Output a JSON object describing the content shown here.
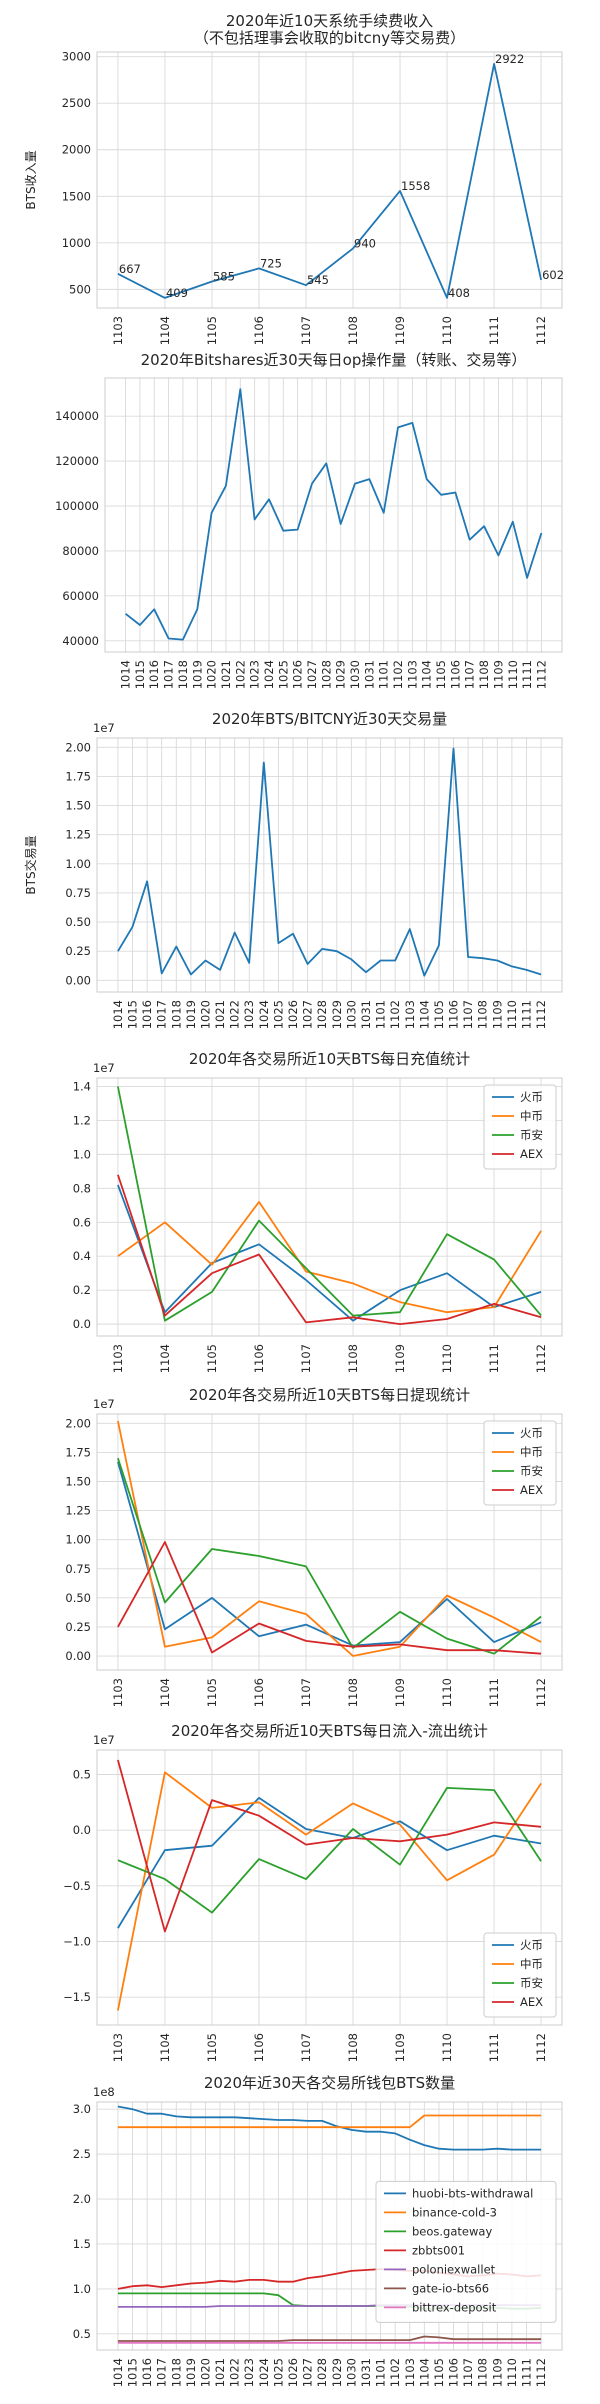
{
  "chart_data": [
    {
      "type": "line",
      "title": "2020年近10天系统手续费收入\n（不包括理事会收取的bitcny等交易费）",
      "ylabel": "BTS收入量",
      "x": [
        "1103",
        "1104",
        "1105",
        "1106",
        "1107",
        "1108",
        "1109",
        "1110",
        "1111",
        "1112"
      ],
      "ylim": [
        300,
        3050
      ],
      "yticks": [
        500,
        1000,
        1500,
        2000,
        2500,
        3000
      ],
      "grid": true,
      "series": [
        {
          "color": "#1f77b4",
          "values": [
            667,
            409,
            585,
            725,
            545,
            940,
            1558,
            408,
            2922,
            602
          ],
          "labels": [
            "667",
            "409",
            "585",
            "725",
            "545",
            "940",
            "1558",
            "408",
            "2922",
            "602"
          ]
        }
      ]
    },
    {
      "type": "line",
      "title": "2020年Bitshares近30天每日op操作量（转账、交易等）",
      "ylabel": "",
      "x": [
        "1014",
        "1015",
        "1016",
        "1017",
        "1018",
        "1019",
        "1020",
        "1021",
        "1022",
        "1023",
        "1024",
        "1025",
        "1026",
        "1027",
        "1028",
        "1029",
        "1030",
        "1031",
        "1101",
        "1102",
        "1103",
        "1104",
        "1105",
        "1106",
        "1107",
        "1108",
        "1109",
        "1110",
        "1111",
        "1112"
      ],
      "ylim": [
        35000,
        157000
      ],
      "yticks": [
        40000,
        60000,
        80000,
        100000,
        120000,
        140000
      ],
      "grid": true,
      "series": [
        {
          "color": "#1f77b4",
          "values": [
            52000,
            47000,
            54000,
            41000,
            40500,
            54000,
            97000,
            109000,
            152000,
            94000,
            103000,
            89000,
            89500,
            110000,
            119000,
            92000,
            110000,
            112000,
            97000,
            135000,
            137000,
            112000,
            105000,
            106000,
            85000,
            91000,
            78000,
            93000,
            68000,
            88000
          ]
        }
      ]
    },
    {
      "type": "line",
      "title": "2020年BTS/BITCNY近30天交易量",
      "ylabel": "BTS交易量",
      "scale_label": "1e7",
      "x": [
        "1014",
        "1015",
        "1016",
        "1017",
        "1018",
        "1019",
        "1020",
        "1021",
        "1022",
        "1023",
        "1024",
        "1025",
        "1026",
        "1027",
        "1028",
        "1029",
        "1030",
        "1031",
        "1101",
        "1102",
        "1103",
        "1104",
        "1105",
        "1106",
        "1107",
        "1108",
        "1109",
        "1110",
        "1111",
        "1112"
      ],
      "ylim": [
        -0.1,
        2.08
      ],
      "yticks": [
        0,
        0.25,
        0.5,
        0.75,
        1.0,
        1.25,
        1.5,
        1.75,
        2.0
      ],
      "ytick_labels": [
        "0.00",
        "0.25",
        "0.50",
        "0.75",
        "1.00",
        "1.25",
        "1.50",
        "1.75",
        "2.00"
      ],
      "grid": true,
      "series": [
        {
          "color": "#1f77b4",
          "values": [
            0.25,
            0.46,
            0.85,
            0.06,
            0.29,
            0.05,
            0.17,
            0.09,
            0.41,
            0.15,
            1.87,
            0.32,
            0.4,
            0.14,
            0.27,
            0.25,
            0.18,
            0.07,
            0.17,
            0.17,
            0.44,
            0.04,
            0.3,
            1.99,
            0.2,
            0.19,
            0.17,
            0.12,
            0.09,
            0.05
          ]
        }
      ]
    },
    {
      "type": "line",
      "title": "2020年各交易所近10天BTS每日充值统计",
      "ylabel": "",
      "scale_label": "1e7",
      "x": [
        "1103",
        "1104",
        "1105",
        "1106",
        "1107",
        "1108",
        "1109",
        "1110",
        "1111",
        "1112"
      ],
      "ylim": [
        -0.07,
        1.45
      ],
      "yticks": [
        0,
        0.2,
        0.4,
        0.6,
        0.8,
        1.0,
        1.2,
        1.4
      ],
      "ytick_labels": [
        "0.0",
        "0.2",
        "0.4",
        "0.6",
        "0.8",
        "1.0",
        "1.2",
        "1.4"
      ],
      "grid": true,
      "legend": "top-right",
      "series": [
        {
          "name": "火币",
          "color": "#1f77b4",
          "values": [
            0.82,
            0.07,
            0.36,
            0.47,
            0.26,
            0.02,
            0.2,
            0.3,
            0.1,
            0.19
          ]
        },
        {
          "name": "中币",
          "color": "#ff7f0e",
          "values": [
            0.4,
            0.6,
            0.35,
            0.72,
            0.31,
            0.24,
            0.13,
            0.07,
            0.1,
            0.55
          ]
        },
        {
          "name": "币安",
          "color": "#2ca02c",
          "values": [
            1.4,
            0.02,
            0.19,
            0.61,
            0.33,
            0.05,
            0.07,
            0.53,
            0.38,
            0.05
          ]
        },
        {
          "name": "AEX",
          "color": "#d62728",
          "values": [
            0.88,
            0.05,
            0.3,
            0.41,
            0.01,
            0.04,
            0.0,
            0.03,
            0.12,
            0.04
          ]
        }
      ]
    },
    {
      "type": "line",
      "title": "2020年各交易所近10天BTS每日提现统计",
      "ylabel": "",
      "scale_label": "1e7",
      "x": [
        "1103",
        "1104",
        "1105",
        "1106",
        "1107",
        "1108",
        "1109",
        "1110",
        "1111",
        "1112"
      ],
      "ylim": [
        -0.12,
        2.08
      ],
      "yticks": [
        0,
        0.25,
        0.5,
        0.75,
        1.0,
        1.25,
        1.5,
        1.75,
        2.0
      ],
      "ytick_labels": [
        "0.00",
        "0.25",
        "0.50",
        "0.75",
        "1.00",
        "1.25",
        "1.50",
        "1.75",
        "2.00"
      ],
      "grid": true,
      "legend": "top-right",
      "series": [
        {
          "name": "火币",
          "color": "#1f77b4",
          "values": [
            1.67,
            0.23,
            0.5,
            0.17,
            0.27,
            0.09,
            0.12,
            0.49,
            0.12,
            0.29
          ]
        },
        {
          "name": "中币",
          "color": "#ff7f0e",
          "values": [
            2.02,
            0.08,
            0.16,
            0.47,
            0.36,
            0.0,
            0.08,
            0.52,
            0.33,
            0.12
          ]
        },
        {
          "name": "币安",
          "color": "#2ca02c",
          "values": [
            1.7,
            0.46,
            0.92,
            0.86,
            0.77,
            0.07,
            0.38,
            0.15,
            0.02,
            0.34
          ]
        },
        {
          "name": "AEX",
          "color": "#d62728",
          "values": [
            0.25,
            0.98,
            0.03,
            0.28,
            0.13,
            0.08,
            0.1,
            0.05,
            0.05,
            0.02
          ]
        }
      ]
    },
    {
      "type": "line",
      "title": "2020年各交易所近10天BTS每日流入-流出统计",
      "ylabel": "",
      "scale_label": "1e7",
      "x": [
        "1103",
        "1104",
        "1105",
        "1106",
        "1107",
        "1108",
        "1109",
        "1110",
        "1111",
        "1112"
      ],
      "ylim": [
        -1.75,
        0.72
      ],
      "yticks": [
        -1.5,
        -1.0,
        -0.5,
        0,
        0.5
      ],
      "ytick_labels": [
        "−1.5",
        "−1.0",
        "−0.5",
        "0.0",
        "0.5"
      ],
      "grid": true,
      "legend": "bottom-right",
      "series": [
        {
          "name": "火币",
          "color": "#1f77b4",
          "values": [
            -0.88,
            -0.18,
            -0.14,
            0.29,
            0.01,
            -0.07,
            0.08,
            -0.18,
            -0.05,
            -0.12
          ]
        },
        {
          "name": "中币",
          "color": "#ff7f0e",
          "values": [
            -1.62,
            0.52,
            0.2,
            0.25,
            -0.04,
            0.24,
            0.05,
            -0.45,
            -0.22,
            0.42
          ]
        },
        {
          "name": "币安",
          "color": "#2ca02c",
          "values": [
            -0.27,
            -0.44,
            -0.74,
            -0.26,
            -0.44,
            0.01,
            -0.31,
            0.38,
            0.36,
            -0.28
          ]
        },
        {
          "name": "AEX",
          "color": "#d62728",
          "values": [
            0.63,
            -0.91,
            0.27,
            0.13,
            -0.13,
            -0.07,
            -0.1,
            -0.04,
            0.07,
            0.03
          ]
        }
      ]
    },
    {
      "type": "line",
      "title": "2020年近30天各交易所钱包BTS数量",
      "ylabel": "",
      "scale_label": "1e8",
      "x": [
        "1014",
        "1015",
        "1016",
        "1017",
        "1018",
        "1019",
        "1020",
        "1021",
        "1022",
        "1023",
        "1024",
        "1025",
        "1026",
        "1027",
        "1028",
        "1029",
        "1030",
        "1031",
        "1101",
        "1102",
        "1103",
        "1104",
        "1105",
        "1106",
        "1107",
        "1108",
        "1109",
        "1110",
        "1111",
        "1112"
      ],
      "ylim": [
        0.32,
        3.08
      ],
      "yticks": [
        0.5,
        1.0,
        1.5,
        2.0,
        2.5,
        3.0
      ],
      "ytick_labels": [
        "0.5",
        "1.0",
        "1.5",
        "2.0",
        "2.5",
        "3.0"
      ],
      "grid": true,
      "legend": "center-right",
      "series": [
        {
          "name": "huobi-bts-withdrawal",
          "color": "#1f77b4",
          "values": [
            3.03,
            3.0,
            2.95,
            2.95,
            2.92,
            2.91,
            2.91,
            2.91,
            2.91,
            2.9,
            2.89,
            2.88,
            2.88,
            2.87,
            2.87,
            2.81,
            2.77,
            2.75,
            2.75,
            2.73,
            2.66,
            2.6,
            2.56,
            2.55,
            2.55,
            2.55,
            2.56,
            2.55,
            2.55,
            2.55
          ]
        },
        {
          "name": "binance-cold-3",
          "color": "#ff7f0e",
          "values": [
            2.8,
            2.8,
            2.8,
            2.8,
            2.8,
            2.8,
            2.8,
            2.8,
            2.8,
            2.8,
            2.8,
            2.8,
            2.8,
            2.8,
            2.8,
            2.8,
            2.8,
            2.8,
            2.8,
            2.8,
            2.8,
            2.93,
            2.93,
            2.93,
            2.93,
            2.93,
            2.93,
            2.93,
            2.93,
            2.93
          ]
        },
        {
          "name": "beos.gateway",
          "color": "#2ca02c",
          "values": [
            0.95,
            0.95,
            0.95,
            0.95,
            0.95,
            0.95,
            0.95,
            0.95,
            0.95,
            0.95,
            0.95,
            0.93,
            0.82,
            0.81,
            0.81,
            0.81,
            0.81,
            0.81,
            0.81,
            0.8,
            0.8,
            0.78,
            0.78,
            0.78,
            0.79,
            0.79,
            0.79,
            0.78,
            0.78,
            0.79
          ]
        },
        {
          "name": "zbbts001",
          "color": "#d62728",
          "values": [
            1.0,
            1.03,
            1.04,
            1.02,
            1.04,
            1.06,
            1.07,
            1.09,
            1.08,
            1.1,
            1.1,
            1.08,
            1.08,
            1.12,
            1.14,
            1.17,
            1.2,
            1.21,
            1.22,
            1.21,
            1.2,
            1.2,
            1.18,
            1.16,
            1.14,
            1.15,
            1.17,
            1.16,
            1.14,
            1.15
          ]
        },
        {
          "name": "poloniexwallet",
          "color": "#9467bd",
          "values": [
            0.8,
            0.8,
            0.8,
            0.8,
            0.8,
            0.8,
            0.8,
            0.81,
            0.81,
            0.81,
            0.81,
            0.81,
            0.81,
            0.81,
            0.81,
            0.81,
            0.81,
            0.81,
            0.82,
            0.82,
            0.82,
            0.82,
            0.82,
            0.82,
            0.82,
            0.82,
            0.82,
            0.82,
            0.82,
            0.82
          ]
        },
        {
          "name": "gate-io-bts66",
          "color": "#8c564b",
          "values": [
            0.42,
            0.42,
            0.42,
            0.42,
            0.42,
            0.42,
            0.42,
            0.42,
            0.42,
            0.42,
            0.42,
            0.42,
            0.43,
            0.43,
            0.43,
            0.43,
            0.43,
            0.43,
            0.43,
            0.43,
            0.43,
            0.47,
            0.46,
            0.44,
            0.44,
            0.44,
            0.44,
            0.44,
            0.44,
            0.44
          ]
        },
        {
          "name": "bittrex-deposit",
          "color": "#e377c2",
          "values": [
            0.4,
            0.4,
            0.4,
            0.4,
            0.4,
            0.4,
            0.4,
            0.4,
            0.4,
            0.4,
            0.4,
            0.4,
            0.4,
            0.4,
            0.4,
            0.4,
            0.4,
            0.4,
            0.4,
            0.4,
            0.4,
            0.4,
            0.4,
            0.4,
            0.4,
            0.4,
            0.4,
            0.4,
            0.4,
            0.4
          ]
        }
      ]
    }
  ]
}
